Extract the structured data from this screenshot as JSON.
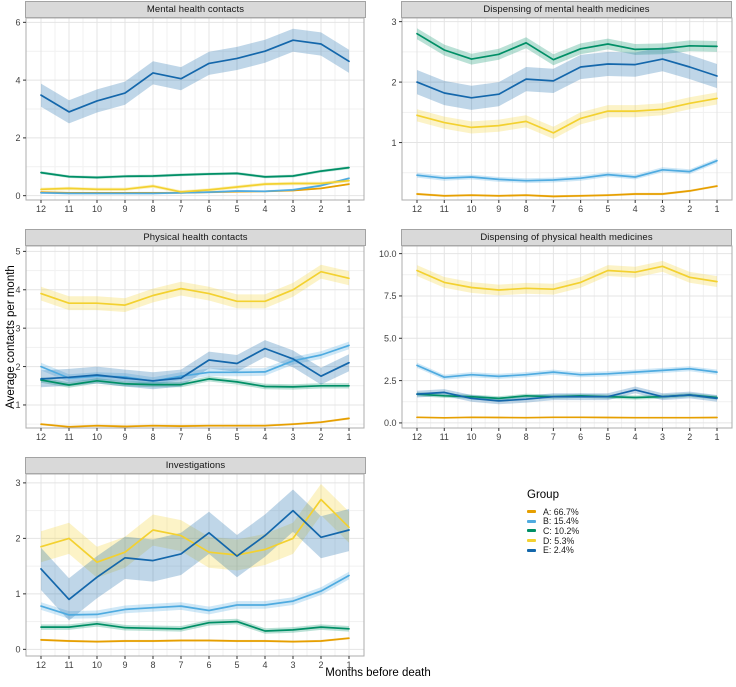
{
  "figure": {
    "x_axis_title": "Months before death",
    "y_axis_title": "Average contacts per month",
    "background": "#ffffff",
    "panel_border": "#adadad",
    "strip_fill": "#d9d9d9",
    "grid_major": "#e4e4e4",
    "grid_minor": "#f1f1f1",
    "tick_color": "#333333",
    "tick_label_color": "#404040"
  },
  "legend": {
    "title": "Group",
    "items": [
      {
        "group": "A",
        "label": "A: 66.7%",
        "color": "#E69F00"
      },
      {
        "group": "B",
        "label": "B: 15.4%",
        "color": "#4FABE0"
      },
      {
        "group": "C",
        "label": "C: 10.2%",
        "color": "#008F66"
      },
      {
        "group": "D",
        "label": "D: 5.3%",
        "color": "#F3D130"
      },
      {
        "group": "E",
        "label": "E: 2.4%",
        "color": "#1467AB"
      }
    ]
  },
  "months": [
    12,
    11,
    10,
    9,
    8,
    7,
    6,
    5,
    4,
    3,
    2,
    1
  ],
  "chart_data": [
    {
      "type": "line",
      "title": "Mental health contacts",
      "ylim": [
        -0.15,
        6.15
      ],
      "yticks": [
        "0",
        "2",
        "4",
        "6"
      ],
      "series": [
        {
          "group": "A",
          "ci": 0.03,
          "values": [
            0.12,
            0.1,
            0.1,
            0.1,
            0.1,
            0.1,
            0.12,
            0.14,
            0.15,
            0.18,
            0.25,
            0.4
          ]
        },
        {
          "group": "B",
          "ci": 0.04,
          "values": [
            0.1,
            0.08,
            0.08,
            0.08,
            0.08,
            0.1,
            0.12,
            0.16,
            0.15,
            0.2,
            0.35,
            0.6
          ]
        },
        {
          "group": "C",
          "ci": 0.05,
          "values": [
            0.8,
            0.66,
            0.63,
            0.67,
            0.68,
            0.72,
            0.75,
            0.77,
            0.65,
            0.68,
            0.85,
            0.97
          ]
        },
        {
          "group": "D",
          "ci": 0.06,
          "values": [
            0.22,
            0.25,
            0.22,
            0.22,
            0.33,
            0.13,
            0.2,
            0.3,
            0.4,
            0.42,
            0.42,
            0.52
          ]
        },
        {
          "group": "E",
          "ci": 0.4,
          "values": [
            3.48,
            2.9,
            3.28,
            3.55,
            4.25,
            4.05,
            4.58,
            4.75,
            5.0,
            5.38,
            5.25,
            4.65
          ]
        }
      ]
    },
    {
      "type": "line",
      "title": "Dispensing of mental health medicines",
      "ylim": [
        0.05,
        3.06
      ],
      "yticks": [
        "1",
        "2",
        "3"
      ],
      "series": [
        {
          "group": "A",
          "ci": 0.02,
          "values": [
            0.15,
            0.12,
            0.13,
            0.12,
            0.13,
            0.11,
            0.12,
            0.13,
            0.15,
            0.15,
            0.2,
            0.28
          ]
        },
        {
          "group": "B",
          "ci": 0.04,
          "values": [
            0.46,
            0.41,
            0.43,
            0.39,
            0.37,
            0.38,
            0.41,
            0.47,
            0.43,
            0.55,
            0.52,
            0.7
          ]
        },
        {
          "group": "C",
          "ci": 0.09,
          "values": [
            2.8,
            2.53,
            2.38,
            2.46,
            2.65,
            2.37,
            2.55,
            2.63,
            2.54,
            2.55,
            2.6,
            2.59
          ]
        },
        {
          "group": "D",
          "ci": 0.1,
          "values": [
            1.45,
            1.33,
            1.25,
            1.28,
            1.35,
            1.16,
            1.4,
            1.52,
            1.52,
            1.55,
            1.65,
            1.73
          ]
        },
        {
          "group": "E",
          "ci": 0.2,
          "values": [
            2.0,
            1.82,
            1.74,
            1.8,
            2.05,
            2.02,
            2.25,
            2.3,
            2.29,
            2.38,
            2.25,
            2.1
          ]
        }
      ]
    },
    {
      "type": "line",
      "title": "Physical health contacts",
      "ylim": [
        0.4,
        5.14
      ],
      "yticks": [
        "1",
        "2",
        "3",
        "4",
        "5"
      ],
      "series": [
        {
          "group": "A",
          "ci": 0.03,
          "values": [
            0.5,
            0.43,
            0.46,
            0.44,
            0.46,
            0.45,
            0.46,
            0.46,
            0.46,
            0.5,
            0.55,
            0.65
          ]
        },
        {
          "group": "B",
          "ci": 0.1,
          "values": [
            2.0,
            1.7,
            1.75,
            1.73,
            1.62,
            1.75,
            1.85,
            1.85,
            1.86,
            2.15,
            2.3,
            2.55
          ]
        },
        {
          "group": "C",
          "ci": 0.07,
          "values": [
            1.65,
            1.52,
            1.63,
            1.55,
            1.53,
            1.53,
            1.68,
            1.6,
            1.48,
            1.47,
            1.5,
            1.5
          ]
        },
        {
          "group": "D",
          "ci": 0.18,
          "values": [
            3.9,
            3.65,
            3.65,
            3.6,
            3.85,
            4.03,
            3.9,
            3.7,
            3.7,
            4.0,
            4.47,
            4.3
          ]
        },
        {
          "group": "E",
          "ci": 0.22,
          "values": [
            1.68,
            1.72,
            1.78,
            1.7,
            1.63,
            1.7,
            2.17,
            2.08,
            2.47,
            2.2,
            1.75,
            2.1
          ]
        }
      ]
    },
    {
      "type": "line",
      "title": "Dispensing of physical health medicines",
      "ylim": [
        -0.3,
        10.45
      ],
      "yticks": [
        "0.0",
        "2.5",
        "5.0",
        "7.5",
        "10.0"
      ],
      "series": [
        {
          "group": "A",
          "ci": 0.03,
          "values": [
            0.33,
            0.3,
            0.33,
            0.32,
            0.31,
            0.33,
            0.33,
            0.32,
            0.31,
            0.31,
            0.31,
            0.32
          ]
        },
        {
          "group": "B",
          "ci": 0.15,
          "values": [
            3.4,
            2.7,
            2.85,
            2.75,
            2.85,
            3.0,
            2.85,
            2.9,
            3.0,
            3.1,
            3.2,
            3.0
          ]
        },
        {
          "group": "C",
          "ci": 0.12,
          "values": [
            1.7,
            1.6,
            1.55,
            1.45,
            1.6,
            1.55,
            1.6,
            1.55,
            1.5,
            1.55,
            1.65,
            1.5
          ]
        },
        {
          "group": "D",
          "ci": 0.32,
          "values": [
            9.0,
            8.3,
            8.0,
            7.85,
            7.95,
            7.9,
            8.3,
            9.0,
            8.9,
            9.25,
            8.6,
            8.35
          ]
        },
        {
          "group": "E",
          "ci": 0.2,
          "values": [
            1.7,
            1.8,
            1.45,
            1.3,
            1.4,
            1.55,
            1.55,
            1.55,
            1.95,
            1.55,
            1.65,
            1.45
          ]
        }
      ]
    },
    {
      "type": "line",
      "title": "Investigations",
      "ylim": [
        -0.12,
        3.16
      ],
      "yticks": [
        "0",
        "1",
        "2",
        "3"
      ],
      "series": [
        {
          "group": "A",
          "ci": 0.02,
          "values": [
            0.17,
            0.15,
            0.14,
            0.15,
            0.15,
            0.16,
            0.16,
            0.15,
            0.15,
            0.14,
            0.15,
            0.2
          ]
        },
        {
          "group": "B",
          "ci": 0.07,
          "values": [
            0.78,
            0.62,
            0.63,
            0.72,
            0.75,
            0.78,
            0.7,
            0.8,
            0.8,
            0.87,
            1.05,
            1.33
          ]
        },
        {
          "group": "C",
          "ci": 0.05,
          "values": [
            0.4,
            0.4,
            0.46,
            0.39,
            0.38,
            0.37,
            0.48,
            0.5,
            0.33,
            0.35,
            0.4,
            0.37
          ]
        },
        {
          "group": "D",
          "ci": 0.28,
          "values": [
            1.85,
            2.0,
            1.57,
            1.75,
            2.15,
            2.05,
            1.75,
            1.7,
            1.8,
            2.0,
            2.7,
            2.2
          ]
        },
        {
          "group": "E",
          "ci": 0.38,
          "values": [
            1.45,
            0.9,
            1.3,
            1.65,
            1.6,
            1.72,
            2.1,
            1.68,
            2.05,
            2.5,
            2.02,
            2.15
          ]
        }
      ]
    }
  ]
}
